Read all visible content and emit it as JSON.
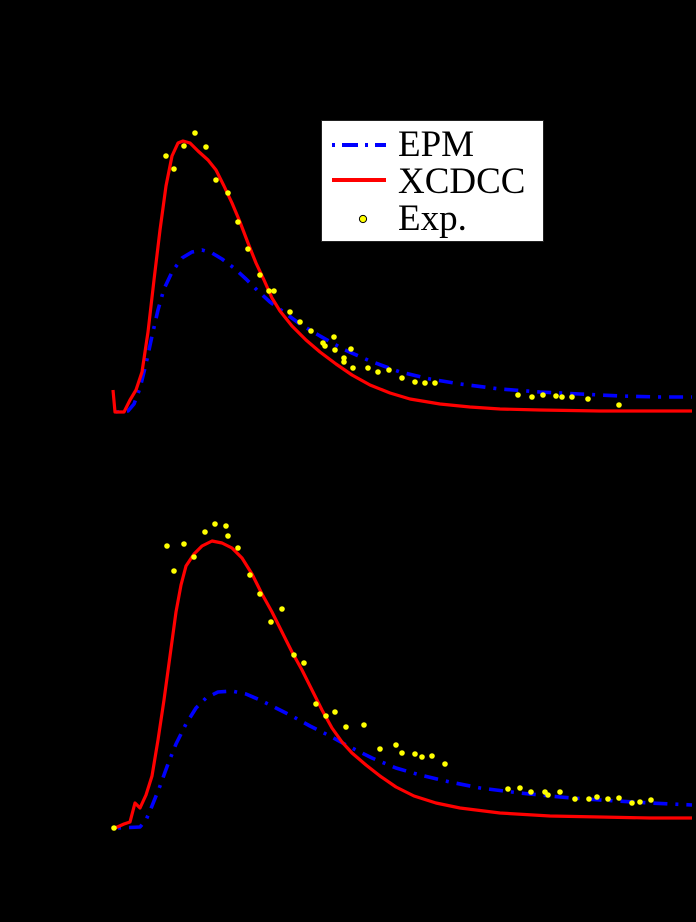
{
  "chart_data": [
    {
      "type": "line",
      "panel": "top",
      "title": "",
      "xlabel": "",
      "ylabel": "",
      "grid": false,
      "legend_position": "upper right",
      "note": "Axes, ticks and labels are not visible (black on black). Coordinates are in screenshot pixels.",
      "series": [
        {
          "name": "EPM",
          "style": "dash-dot",
          "color": "#0000ff",
          "points": [
            [
              116,
              412
            ],
            [
              128,
              411
            ],
            [
              134,
              404
            ],
            [
              140,
              388
            ],
            [
              146,
              364
            ],
            [
              152,
              336
            ],
            [
              158,
              310
            ],
            [
              164,
              289
            ],
            [
              172,
              272
            ],
            [
              182,
              258
            ],
            [
              192,
              252
            ],
            [
              202,
              250
            ],
            [
              212,
              253
            ],
            [
              222,
              259
            ],
            [
              234,
              268
            ],
            [
              246,
              279
            ],
            [
              258,
              291
            ],
            [
              270,
              302
            ],
            [
              285,
              313
            ],
            [
              300,
              324
            ],
            [
              320,
              336
            ],
            [
              345,
              350
            ],
            [
              370,
              361
            ],
            [
              400,
              372
            ],
            [
              430,
              379
            ],
            [
              460,
              384
            ],
            [
              500,
              389
            ],
            [
              540,
              392
            ],
            [
              580,
              394
            ],
            [
              620,
              396
            ],
            [
              660,
              397
            ],
            [
              692,
              397
            ]
          ]
        },
        {
          "name": "XCDCC",
          "style": "solid",
          "color": "#ff0000",
          "points": [
            [
              113,
              390
            ],
            [
              115,
              412
            ],
            [
              124,
              412
            ],
            [
              130,
              400
            ],
            [
              136,
              390
            ],
            [
              142,
              372
            ],
            [
              148,
              332
            ],
            [
              154,
              280
            ],
            [
              160,
              230
            ],
            [
              166,
              186
            ],
            [
              172,
              156
            ],
            [
              178,
              143
            ],
            [
              183,
              141
            ],
            [
              190,
              143
            ],
            [
              198,
              151
            ],
            [
              208,
              160
            ],
            [
              216,
              170
            ],
            [
              224,
              186
            ],
            [
              232,
              203
            ],
            [
              240,
              222
            ],
            [
              248,
              243
            ],
            [
              256,
              263
            ],
            [
              264,
              280
            ],
            [
              272,
              298
            ],
            [
              280,
              311
            ],
            [
              292,
              326
            ],
            [
              306,
              340
            ],
            [
              320,
              352
            ],
            [
              336,
              364
            ],
            [
              352,
              375
            ],
            [
              370,
              385
            ],
            [
              390,
              393
            ],
            [
              410,
              399
            ],
            [
              440,
              404
            ],
            [
              470,
              407
            ],
            [
              500,
              409
            ],
            [
              540,
              410
            ],
            [
              600,
              411
            ],
            [
              650,
              411
            ],
            [
              692,
              411
            ]
          ]
        },
        {
          "name": "Exp.",
          "style": "markers",
          "color": "#ffff00",
          "points": [
            [
              166,
              156
            ],
            [
              174,
              169
            ],
            [
              184,
              146
            ],
            [
              195,
              133
            ],
            [
              206,
              147
            ],
            [
              216,
              180
            ],
            [
              228,
              193
            ],
            [
              238,
              222
            ],
            [
              248,
              249
            ],
            [
              260,
              275
            ],
            [
              269,
              291
            ],
            [
              274,
              291
            ],
            [
              290,
              312
            ],
            [
              300,
              322
            ],
            [
              311,
              331
            ],
            [
              323,
              343
            ],
            [
              325,
              346
            ],
            [
              334,
              337
            ],
            [
              335,
              350
            ],
            [
              344,
              358
            ],
            [
              351,
              349
            ],
            [
              344,
              362
            ],
            [
              353,
              368
            ],
            [
              368,
              368
            ],
            [
              378,
              372
            ],
            [
              389,
              370
            ],
            [
              402,
              378
            ],
            [
              415,
              382
            ],
            [
              425,
              383
            ],
            [
              435,
              383
            ],
            [
              518,
              395
            ],
            [
              532,
              397
            ],
            [
              543,
              395
            ],
            [
              556,
              396
            ],
            [
              562,
              397
            ],
            [
              572,
              397
            ],
            [
              588,
              399
            ],
            [
              619,
              405
            ]
          ]
        }
      ]
    },
    {
      "type": "line",
      "panel": "bottom",
      "title": "",
      "xlabel": "",
      "ylabel": "",
      "grid": false,
      "note": "Axes, ticks and labels are not visible (black on black). Coordinates are in screenshot pixels.",
      "series": [
        {
          "name": "EPM",
          "style": "dash-dot",
          "color": "#0000ff",
          "points": [
            [
              118,
              828
            ],
            [
              140,
              827
            ],
            [
              146,
              820
            ],
            [
              152,
              806
            ],
            [
              160,
              786
            ],
            [
              168,
              764
            ],
            [
              176,
              744
            ],
            [
              186,
              724
            ],
            [
              196,
              708
            ],
            [
              206,
              698
            ],
            [
              218,
              692
            ],
            [
              232,
              691
            ],
            [
              246,
              694
            ],
            [
              260,
              700
            ],
            [
              276,
              708
            ],
            [
              292,
              716
            ],
            [
              310,
              726
            ],
            [
              330,
              736
            ],
            [
              350,
              747
            ],
            [
              372,
              758
            ],
            [
              396,
              768
            ],
            [
              420,
              775
            ],
            [
              450,
              782
            ],
            [
              480,
              788
            ],
            [
              520,
              793
            ],
            [
              560,
              797
            ],
            [
              600,
              800
            ],
            [
              650,
              803
            ],
            [
              692,
              805
            ]
          ]
        },
        {
          "name": "XCDCC",
          "style": "solid",
          "color": "#ff0000",
          "points": [
            [
              115,
              828
            ],
            [
              124,
              824
            ],
            [
              130,
              822
            ],
            [
              135,
              803
            ],
            [
              140,
              808
            ],
            [
              146,
              795
            ],
            [
              152,
              776
            ],
            [
              158,
              740
            ],
            [
              164,
              700
            ],
            [
              170,
              656
            ],
            [
              176,
              612
            ],
            [
              181,
              585
            ],
            [
              186,
              566
            ],
            [
              194,
              554
            ],
            [
              202,
              546
            ],
            [
              212,
              541
            ],
            [
              222,
              543
            ],
            [
              232,
              548
            ],
            [
              242,
              558
            ],
            [
              252,
              574
            ],
            [
              262,
              594
            ],
            [
              272,
              612
            ],
            [
              282,
              632
            ],
            [
              292,
              652
            ],
            [
              302,
              670
            ],
            [
              312,
              690
            ],
            [
              322,
              710
            ],
            [
              332,
              728
            ],
            [
              342,
              742
            ],
            [
              352,
              753
            ],
            [
              366,
              765
            ],
            [
              380,
              776
            ],
            [
              396,
              787
            ],
            [
              414,
              796
            ],
            [
              436,
              803
            ],
            [
              460,
              808
            ],
            [
              500,
              813
            ],
            [
              550,
              816
            ],
            [
              600,
              817
            ],
            [
              650,
              818
            ],
            [
              692,
              818
            ]
          ]
        },
        {
          "name": "Exp.",
          "style": "markers",
          "color": "#ffff00",
          "points": [
            [
              114,
              828
            ],
            [
              167,
              546
            ],
            [
              174,
              571
            ],
            [
              184,
              544
            ],
            [
              194,
              557
            ],
            [
              205,
              532
            ],
            [
              215,
              524
            ],
            [
              226,
              526
            ],
            [
              228,
              536
            ],
            [
              238,
              548
            ],
            [
              250,
              575
            ],
            [
              260,
              594
            ],
            [
              271,
              622
            ],
            [
              282,
              609
            ],
            [
              294,
              655
            ],
            [
              304,
              663
            ],
            [
              316,
              704
            ],
            [
              326,
              716
            ],
            [
              335,
              712
            ],
            [
              346,
              727
            ],
            [
              364,
              725
            ],
            [
              380,
              749
            ],
            [
              396,
              745
            ],
            [
              402,
              753
            ],
            [
              415,
              754
            ],
            [
              422,
              757
            ],
            [
              432,
              756
            ],
            [
              445,
              764
            ],
            [
              508,
              789
            ],
            [
              520,
              788
            ],
            [
              531,
              792
            ],
            [
              545,
              792
            ],
            [
              548,
              795
            ],
            [
              560,
              792
            ],
            [
              575,
              799
            ],
            [
              589,
              799
            ],
            [
              597,
              797
            ],
            [
              608,
              799
            ],
            [
              619,
              798
            ],
            [
              632,
              803
            ],
            [
              640,
              802
            ],
            [
              651,
              800
            ]
          ]
        }
      ]
    }
  ],
  "legend": {
    "items": [
      {
        "label": "EPM",
        "style": "dash-dot",
        "color": "#0000ff"
      },
      {
        "label": "XCDCC",
        "style": "solid",
        "color": "#ff0000"
      },
      {
        "label": "Exp.",
        "style": "marker",
        "color": "#ffff00"
      }
    ]
  },
  "colors": {
    "background": "#000000",
    "legend_background": "#ffffff",
    "epm": "#0000ff",
    "xcdcc": "#ff0000",
    "exp": "#ffff00"
  }
}
